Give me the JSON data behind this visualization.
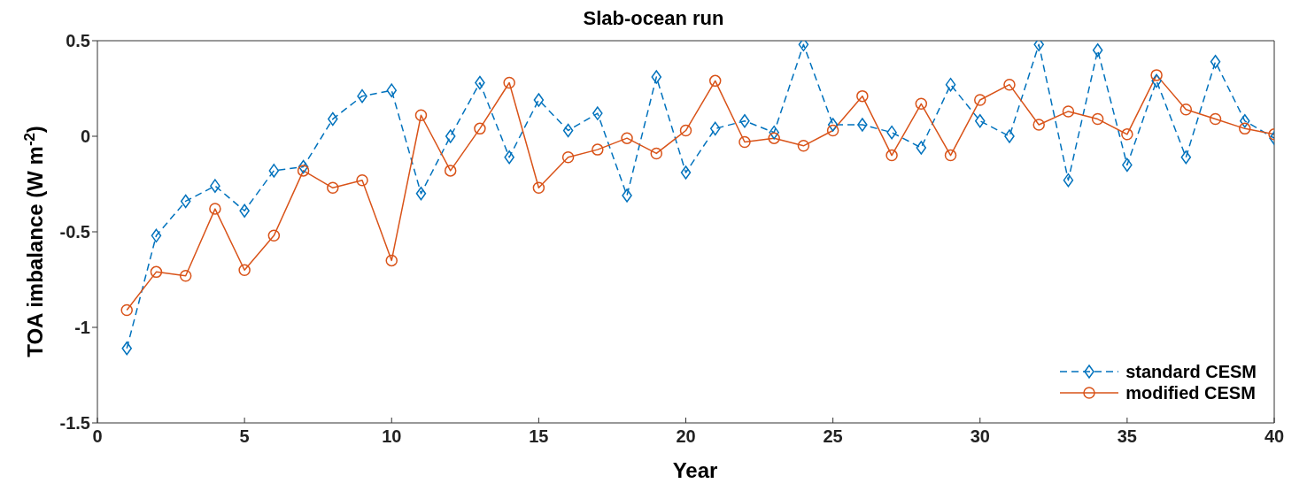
{
  "chart_data": {
    "type": "line",
    "title": "Slab-ocean run",
    "xlabel": "Year",
    "ylabel": "TOA imbalance (W m$^{-2}$)",
    "x": [
      1,
      2,
      3,
      4,
      5,
      6,
      7,
      8,
      9,
      10,
      11,
      12,
      13,
      14,
      15,
      16,
      17,
      18,
      19,
      20,
      21,
      22,
      23,
      24,
      25,
      26,
      27,
      28,
      29,
      30,
      31,
      32,
      33,
      34,
      35,
      36,
      37,
      38,
      39,
      40
    ],
    "series": [
      {
        "name": "standard CESM",
        "color": "#0072bd",
        "marker": "diamond",
        "line_style": "dashed",
        "values": [
          -1.11,
          -0.52,
          -0.34,
          -0.26,
          -0.39,
          -0.18,
          -0.16,
          0.09,
          0.21,
          0.24,
          -0.3,
          0.0,
          0.28,
          -0.11,
          0.19,
          0.03,
          0.12,
          -0.31,
          0.31,
          -0.19,
          0.04,
          0.08,
          0.02,
          0.48,
          0.06,
          0.06,
          0.02,
          -0.06,
          0.27,
          0.08,
          0.0,
          0.48,
          -0.23,
          0.45,
          -0.15,
          0.29,
          -0.11,
          0.39,
          0.08,
          -0.01
        ]
      },
      {
        "name": "modified CESM",
        "color": "#d95319",
        "marker": "circle",
        "line_style": "solid",
        "values": [
          -0.91,
          -0.71,
          -0.73,
          -0.38,
          -0.7,
          -0.52,
          -0.18,
          -0.27,
          -0.23,
          -0.65,
          0.11,
          -0.18,
          0.04,
          0.28,
          -0.27,
          -0.11,
          -0.07,
          -0.01,
          -0.09,
          0.03,
          0.29,
          -0.03,
          -0.01,
          -0.05,
          0.03,
          0.21,
          -0.1,
          0.17,
          -0.1,
          0.19,
          0.27,
          0.06,
          0.13,
          0.09,
          0.01,
          0.32,
          0.14,
          0.09,
          0.04,
          0.01
        ]
      }
    ],
    "xlim": [
      0,
      40
    ],
    "xticks": [
      0,
      5,
      10,
      15,
      20,
      25,
      30,
      35,
      40
    ],
    "ylim": [
      -1.5,
      0.5
    ],
    "yticks": [
      -1.5,
      -1,
      -0.5,
      0,
      0.5
    ],
    "grid": false,
    "legend": "bottom right"
  }
}
